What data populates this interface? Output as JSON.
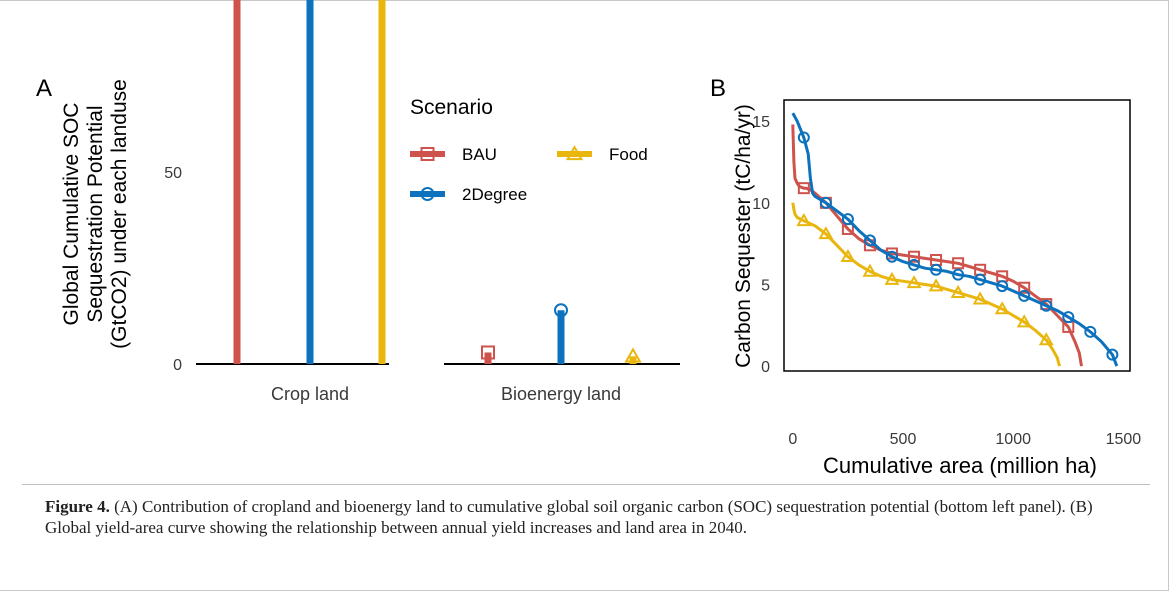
{
  "colors": {
    "BAU": "#cd534c",
    "2Degree": "#0c72bd",
    "Food": "#e9b60d",
    "axis": "#000000",
    "text": "#3a3a3a"
  },
  "caption": {
    "label": "Figure 4.",
    "text": " (A) Contribution of cropland and bioenergy land to cumulative global soil organic carbon (SOC) sequestration potential (bottom left panel). (B) Global yield-area curve showing the relationship between annual yield increases and land area in 2040."
  },
  "chart_data": [
    {
      "panel_label": "A",
      "type": "bar",
      "style": "lollipop",
      "ylabel_lines": [
        "Global Cumulative SOC",
        "Sequestration Potential",
        "(GtCO2) under each landuse"
      ],
      "xlabel": "",
      "categories": [
        "Crop land",
        "Bioenergy land"
      ],
      "series": [
        {
          "name": "BAU",
          "marker": "square",
          "values": [
            128,
            3
          ]
        },
        {
          "name": "2Degree",
          "marker": "circle",
          "values": [
            132,
            14
          ]
        },
        {
          "name": "Food",
          "marker": "triangle",
          "values": [
            129,
            2
          ]
        }
      ],
      "ylim": [
        0,
        135
      ],
      "yticks": [
        0,
        50,
        100
      ],
      "grid": false,
      "legend": {
        "title": "Scenario",
        "placement": "top-right",
        "entries": [
          "BAU",
          "Food",
          "2Degree"
        ]
      }
    },
    {
      "panel_label": "B",
      "type": "line",
      "xlabel": "Cumulative area (million ha)",
      "ylabel": "Carbon Sequester (tC/ha/yr)",
      "xlim": [
        -40,
        1530
      ],
      "ylim": [
        -0.3,
        16.3
      ],
      "xticks": [
        0,
        500,
        1000,
        1500
      ],
      "yticks": [
        0,
        5,
        10,
        15
      ],
      "grid": false,
      "series": [
        {
          "name": "BAU",
          "marker": "square",
          "x": [
            0,
            5,
            10,
            20,
            30,
            50,
            60,
            80,
            100,
            150,
            200,
            250,
            300,
            350,
            400,
            450,
            500,
            550,
            600,
            650,
            700,
            750,
            800,
            850,
            900,
            950,
            1000,
            1050,
            1100,
            1150,
            1200,
            1250,
            1280,
            1300,
            1310
          ],
          "y": [
            14.8,
            12.5,
            11.5,
            11.2,
            11.0,
            10.9,
            10.9,
            10.8,
            10.6,
            10.0,
            9.2,
            8.4,
            7.8,
            7.4,
            7.1,
            6.9,
            6.8,
            6.7,
            6.6,
            6.5,
            6.4,
            6.3,
            6.1,
            5.9,
            5.7,
            5.5,
            5.2,
            4.8,
            4.3,
            3.8,
            3.1,
            2.4,
            1.5,
            0.8,
            0.0
          ],
          "marker_x": [
            50,
            150,
            250,
            350,
            450,
            550,
            650,
            750,
            850,
            950,
            1050,
            1150,
            1250
          ]
        },
        {
          "name": "2Degree",
          "marker": "circle",
          "x": [
            0,
            20,
            50,
            70,
            80,
            90,
            100,
            150,
            200,
            250,
            300,
            350,
            400,
            450,
            500,
            550,
            600,
            650,
            700,
            750,
            800,
            850,
            900,
            950,
            1000,
            1050,
            1100,
            1150,
            1200,
            1250,
            1300,
            1350,
            1400,
            1450,
            1470
          ],
          "y": [
            15.5,
            15.0,
            14.0,
            13.0,
            11.5,
            10.6,
            10.4,
            10.0,
            9.5,
            9.0,
            8.3,
            7.7,
            7.1,
            6.7,
            6.4,
            6.2,
            6.0,
            5.9,
            5.8,
            5.6,
            5.5,
            5.3,
            5.1,
            4.9,
            4.6,
            4.3,
            4.0,
            3.7,
            3.4,
            3.0,
            2.6,
            2.1,
            1.5,
            0.7,
            0.0
          ],
          "marker_x": [
            50,
            150,
            250,
            350,
            450,
            550,
            650,
            750,
            850,
            950,
            1050,
            1150,
            1250,
            1350,
            1450
          ]
        },
        {
          "name": "Food",
          "marker": "triangle",
          "x": [
            0,
            5,
            10,
            20,
            50,
            100,
            150,
            200,
            250,
            300,
            350,
            400,
            450,
            500,
            550,
            600,
            650,
            700,
            750,
            800,
            850,
            900,
            950,
            1000,
            1050,
            1100,
            1150,
            1180,
            1200,
            1210
          ],
          "y": [
            10.0,
            9.6,
            9.3,
            9.1,
            8.9,
            8.6,
            8.1,
            7.4,
            6.7,
            6.2,
            5.8,
            5.5,
            5.3,
            5.2,
            5.1,
            5.0,
            4.9,
            4.7,
            4.5,
            4.3,
            4.1,
            3.8,
            3.5,
            3.1,
            2.7,
            2.2,
            1.6,
            1.0,
            0.5,
            0.0
          ],
          "marker_x": [
            50,
            150,
            250,
            350,
            450,
            550,
            650,
            750,
            850,
            950,
            1050,
            1150
          ]
        }
      ]
    }
  ]
}
